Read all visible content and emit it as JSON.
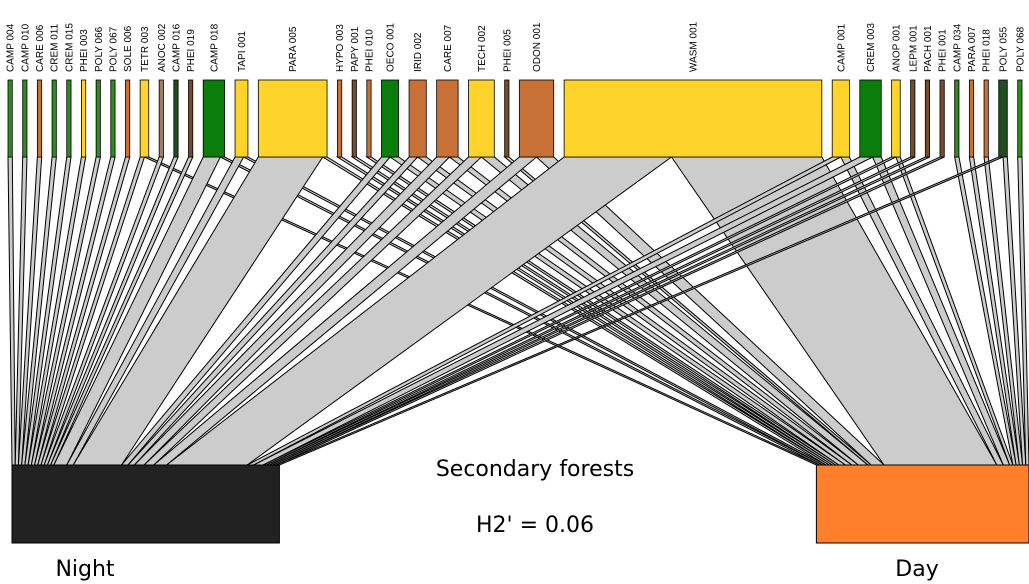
{
  "title": "Secondary forests",
  "index": "H2' = 0.06",
  "bottom_nodes": [
    {
      "label": "Night",
      "color": "#222222"
    },
    {
      "label": "Day",
      "color": "#ff7f2a"
    }
  ],
  "top_nodes": [
    {
      "label": "CAMP 004",
      "color": "#2e8b1e",
      "night": 1,
      "day": 0
    },
    {
      "label": "CAMP 010",
      "color": "#2e8b1e",
      "night": 1,
      "day": 0
    },
    {
      "label": "CARE 006",
      "color": "#c87137",
      "night": 1,
      "day": 0
    },
    {
      "label": "CREM 011",
      "color": "#2e8b1e",
      "night": 1,
      "day": 0
    },
    {
      "label": "CREM 015",
      "color": "#2e8b1e",
      "night": 1,
      "day": 0
    },
    {
      "label": "PHEI 003",
      "color": "#ffd42a",
      "night": 1,
      "day": 0
    },
    {
      "label": "POLY 066",
      "color": "#2e8b1e",
      "night": 1,
      "day": 0
    },
    {
      "label": "POLY 067",
      "color": "#2e8b1e",
      "night": 1,
      "day": 0
    },
    {
      "label": "SOLE 006",
      "color": "#c87137",
      "night": 1,
      "day": 0
    },
    {
      "label": "TETR 003",
      "color": "#ffd42a",
      "night": 1,
      "day": 1
    },
    {
      "label": "ANOC 002",
      "color": "#a08060",
      "night": 1,
      "day": 0
    },
    {
      "label": "CAMP 016",
      "color": "#1e4d1e",
      "night": 1,
      "day": 0
    },
    {
      "label": "PHEI 019",
      "color": "#7a4a2a",
      "night": 1,
      "day": 0
    },
    {
      "label": "CAMP 018",
      "color": "#0a7d0a",
      "night": 4,
      "day": 1
    },
    {
      "label": "TAPI 001",
      "color": "#ffd42a",
      "night": 2,
      "day": 1
    },
    {
      "label": "PARA 005",
      "color": "#ffd42a",
      "night": 15,
      "day": 1
    },
    {
      "label": "HYPO 003",
      "color": "#c87137",
      "night": 0,
      "day": 1
    },
    {
      "label": "PAPY 001",
      "color": "#7a4a2a",
      "night": 0,
      "day": 1
    },
    {
      "label": "PHEI 010",
      "color": "#c87137",
      "night": 0,
      "day": 1
    },
    {
      "label": "OECO 001",
      "color": "#0a7d0a",
      "night": 2,
      "day": 2
    },
    {
      "label": "IRID 002",
      "color": "#c87137",
      "night": 2,
      "day": 2
    },
    {
      "label": "CARE 007",
      "color": "#c87137",
      "night": 3,
      "day": 2
    },
    {
      "label": "TECH 002",
      "color": "#ffd42a",
      "night": 3,
      "day": 3
    },
    {
      "label": "PHEI 005",
      "color": "#7a4a2a",
      "night": 0,
      "day": 1
    },
    {
      "label": "ODON 001",
      "color": "#c87137",
      "night": 4,
      "day": 4
    },
    {
      "label": "WASM 001",
      "color": "#ffd42a",
      "night": 25,
      "day": 35
    },
    {
      "label": "CAMP 001",
      "color": "#ffd42a",
      "night": 2,
      "day": 2
    },
    {
      "label": "CREM 003",
      "color": "#0a7d0a",
      "night": 3,
      "day": 2
    },
    {
      "label": "ANOP 001",
      "color": "#ffd42a",
      "night": 1,
      "day": 1
    },
    {
      "label": "LEPM 001",
      "color": "#7a4a2a",
      "night": 1,
      "day": 0
    },
    {
      "label": "PACH 001",
      "color": "#7a4a2a",
      "night": 1,
      "day": 0
    },
    {
      "label": "PHEI 001",
      "color": "#7a4a2a",
      "night": 1,
      "day": 0
    },
    {
      "label": "CAMP 034",
      "color": "#2e8b1e",
      "night": 0,
      "day": 1
    },
    {
      "label": "PARA 007",
      "color": "#c87137",
      "night": 0,
      "day": 1
    },
    {
      "label": "PHEI 018",
      "color": "#c87137",
      "night": 0,
      "day": 1
    },
    {
      "label": "POLY 055",
      "color": "#1e4d1e",
      "night": 1,
      "day": 1
    },
    {
      "label": "POLY 068",
      "color": "#2e8b1e",
      "night": 0,
      "day": 1
    }
  ]
}
